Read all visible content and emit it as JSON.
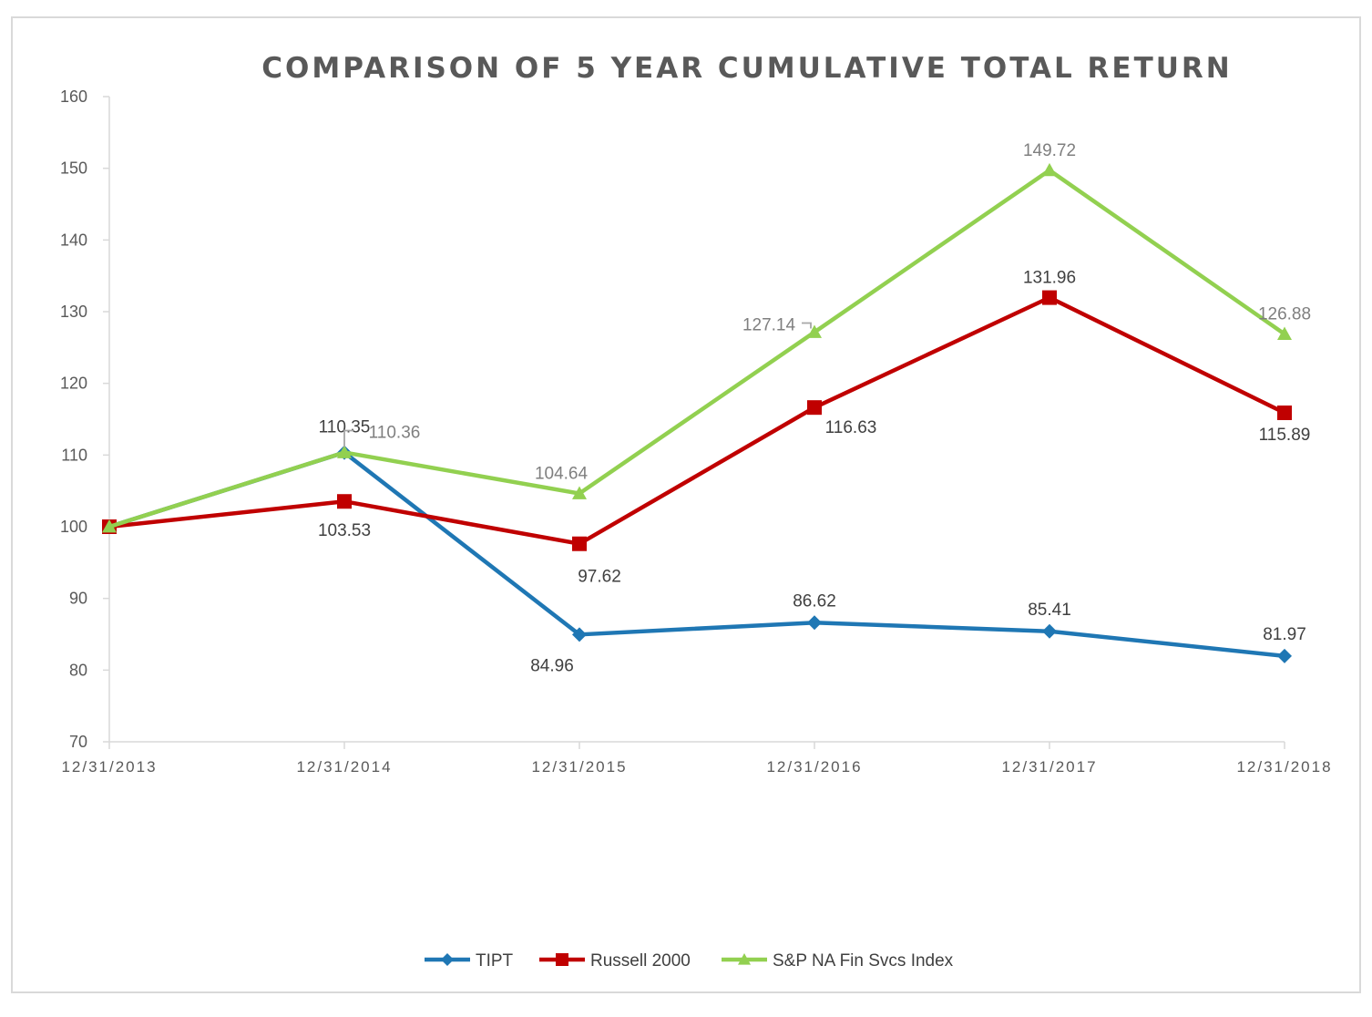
{
  "chart_data": {
    "type": "line",
    "title": "COMPARISON OF 5 YEAR CUMULATIVE TOTAL RETURN",
    "xlabel": "",
    "ylabel": "",
    "categories": [
      "12/31/2013",
      "12/31/2014",
      "12/31/2015",
      "12/31/2016",
      "12/31/2017",
      "12/31/2018"
    ],
    "ylim": [
      70,
      160
    ],
    "yticks": [
      70,
      80,
      90,
      100,
      110,
      120,
      130,
      140,
      150,
      160
    ],
    "grid": false,
    "legend_position": "bottom",
    "series": [
      {
        "name": "TIPT",
        "color": "#1f77b4",
        "marker": "diamond",
        "values": [
          100,
          110.35,
          84.96,
          86.62,
          85.41,
          81.97
        ],
        "labels": [
          "",
          "110.35",
          "84.96",
          "86.62",
          "85.41",
          "81.97"
        ]
      },
      {
        "name": "Russell 2000",
        "color": "#c00000",
        "marker": "square",
        "values": [
          100,
          103.53,
          97.62,
          116.63,
          131.96,
          115.89
        ],
        "labels": [
          "",
          "103.53",
          "97.62",
          "116.63",
          "131.96",
          "115.89"
        ]
      },
      {
        "name": "S&P NA Fin Svcs Index",
        "color": "#92d050",
        "marker": "triangle",
        "values": [
          100,
          110.36,
          104.64,
          127.14,
          149.72,
          126.88
        ],
        "labels": [
          "",
          "110.36",
          "104.64",
          "127.14",
          "149.72",
          "126.88"
        ]
      }
    ]
  }
}
